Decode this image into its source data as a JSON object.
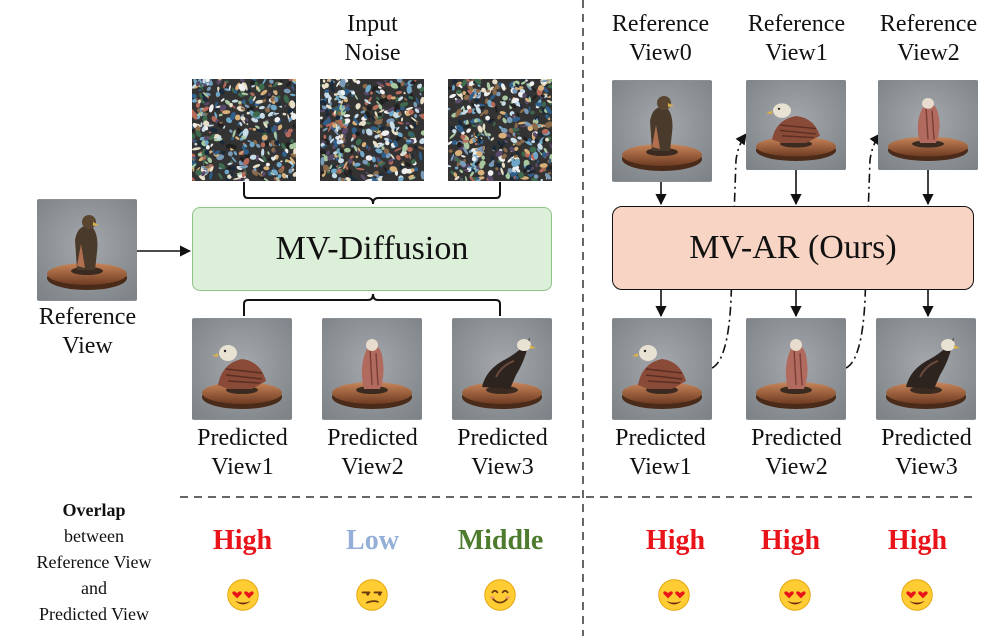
{
  "left": {
    "input_noise": [
      "Input",
      "Noise"
    ],
    "reference_view": [
      "Reference",
      "View"
    ],
    "model": "MV-Diffusion",
    "predicted": [
      [
        "Predicted",
        "View1"
      ],
      [
        "Predicted",
        "View2"
      ],
      [
        "Predicted",
        "View3"
      ]
    ],
    "overlap": [
      "High",
      "Low",
      "Middle"
    ]
  },
  "right": {
    "references": [
      [
        "Reference",
        "View0"
      ],
      [
        "Reference",
        "View1"
      ],
      [
        "Reference",
        "View2"
      ]
    ],
    "model": "MV-AR (Ours)",
    "predicted": [
      [
        "Predicted",
        "View1"
      ],
      [
        "Predicted",
        "View2"
      ],
      [
        "Predicted",
        "View3"
      ]
    ],
    "overlap": [
      "High",
      "High",
      "High"
    ]
  },
  "overlap_caption": {
    "bold": "Overlap",
    "rest": [
      "between",
      "Reference View",
      "and",
      "Predicted View"
    ]
  },
  "colors": {
    "high": "#e8141a",
    "low": "#94b0d8",
    "middle": "#4e7c2e",
    "diffusion_fill": "#dcefd8",
    "diffusion_stroke": "#8fc38a",
    "ar_fill": "#f8d4c4",
    "ar_stroke": "#111111"
  },
  "emoji": {
    "left": [
      "heart-eyes",
      "unamused",
      "smiling"
    ],
    "right": [
      "heart-eyes",
      "heart-eyes",
      "heart-eyes"
    ]
  }
}
